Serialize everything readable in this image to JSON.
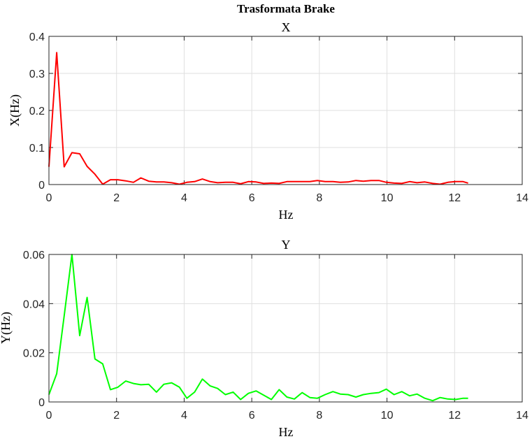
{
  "figure": {
    "title": "Trasformata Brake"
  },
  "chart_data": [
    {
      "type": "line",
      "title": "X",
      "xlabel": "Hz",
      "ylabel": "X(Hz)",
      "xlim": [
        0,
        14
      ],
      "ylim": [
        0,
        0.4
      ],
      "xticks": [
        0,
        2,
        4,
        6,
        8,
        10,
        12,
        14
      ],
      "yticks": [
        0,
        0.1,
        0.2,
        0.3,
        0.4
      ],
      "grid": true,
      "series": [
        {
          "color": "#ff0000",
          "x": [
            0,
            0.23,
            0.45,
            0.68,
            0.91,
            1.13,
            1.36,
            1.59,
            1.82,
            2.04,
            2.27,
            2.5,
            2.72,
            2.95,
            3.18,
            3.4,
            3.63,
            3.86,
            4.08,
            4.31,
            4.54,
            4.77,
            4.99,
            5.22,
            5.45,
            5.67,
            5.9,
            6.13,
            6.35,
            6.58,
            6.81,
            7.04,
            7.26,
            7.49,
            7.72,
            7.94,
            8.17,
            8.4,
            8.62,
            8.85,
            9.08,
            9.3,
            9.53,
            9.76,
            9.98,
            10.21,
            10.44,
            10.67,
            10.89,
            11.12,
            11.35,
            11.57,
            11.8,
            12.03,
            12.25,
            12.4
          ],
          "values": [
            0.048,
            0.356,
            0.048,
            0.086,
            0.083,
            0.049,
            0.028,
            0.001,
            0.013,
            0.013,
            0.01,
            0.006,
            0.018,
            0.009,
            0.007,
            0.007,
            0.005,
            0.001,
            0.006,
            0.008,
            0.015,
            0.008,
            0.005,
            0.006,
            0.006,
            0.002,
            0.008,
            0.007,
            0.003,
            0.004,
            0.003,
            0.008,
            0.008,
            0.008,
            0.008,
            0.011,
            0.008,
            0.008,
            0.006,
            0.007,
            0.011,
            0.009,
            0.011,
            0.011,
            0.006,
            0.004,
            0.003,
            0.008,
            0.005,
            0.007,
            0.003,
            0.001,
            0.006,
            0.008,
            0.008,
            0.004
          ]
        }
      ]
    },
    {
      "type": "line",
      "title": "Y",
      "xlabel": "Hz",
      "ylabel": "Y(Hz)",
      "xlim": [
        0,
        14
      ],
      "ylim": [
        0,
        0.06
      ],
      "xticks": [
        0,
        2,
        4,
        6,
        8,
        10,
        12,
        14
      ],
      "yticks": [
        0,
        0.02,
        0.04,
        0.06
      ],
      "grid": true,
      "series": [
        {
          "color": "#00ff00",
          "x": [
            0,
            0.23,
            0.45,
            0.68,
            0.91,
            1.13,
            1.36,
            1.59,
            1.82,
            2.04,
            2.27,
            2.5,
            2.72,
            2.95,
            3.18,
            3.4,
            3.63,
            3.86,
            4.08,
            4.31,
            4.54,
            4.77,
            4.99,
            5.22,
            5.45,
            5.67,
            5.9,
            6.13,
            6.35,
            6.58,
            6.81,
            7.04,
            7.26,
            7.49,
            7.72,
            7.94,
            8.17,
            8.4,
            8.62,
            8.85,
            9.08,
            9.3,
            9.53,
            9.76,
            9.98,
            10.21,
            10.44,
            10.67,
            10.89,
            11.12,
            11.35,
            11.57,
            11.8,
            12.03,
            12.25,
            12.4
          ],
          "values": [
            0.003,
            0.0115,
            0.035,
            0.06,
            0.027,
            0.0425,
            0.0175,
            0.0155,
            0.005,
            0.006,
            0.0085,
            0.0075,
            0.007,
            0.0072,
            0.004,
            0.0072,
            0.0078,
            0.006,
            0.0015,
            0.004,
            0.0093,
            0.0065,
            0.0055,
            0.003,
            0.004,
            0.001,
            0.0035,
            0.0045,
            0.0028,
            0.001,
            0.005,
            0.002,
            0.0012,
            0.0038,
            0.0018,
            0.0015,
            0.003,
            0.0042,
            0.0032,
            0.003,
            0.002,
            0.003,
            0.0035,
            0.0038,
            0.0052,
            0.003,
            0.0042,
            0.0025,
            0.0032,
            0.0015,
            0.0005,
            0.0018,
            0.0012,
            0.001,
            0.0015,
            0.0015
          ]
        }
      ]
    }
  ]
}
